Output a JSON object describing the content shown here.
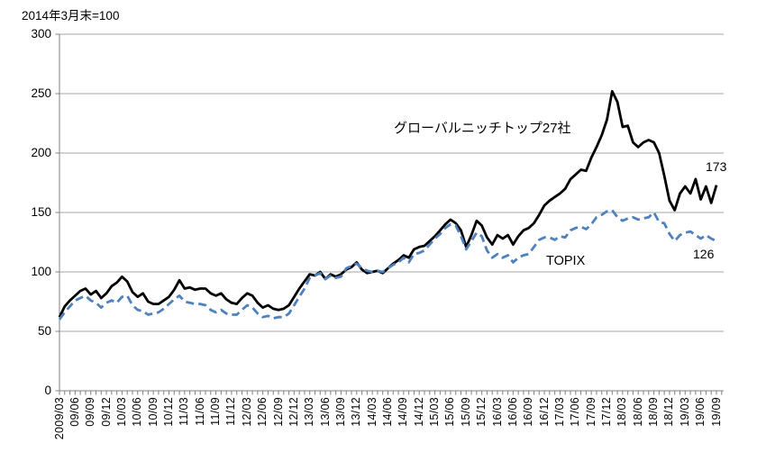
{
  "chart_data": {
    "type": "line",
    "title": "2014年3月末=100",
    "x_start": "2009/03",
    "x_end": "19/09",
    "x_frequency": "monthly",
    "x_tick_labels": [
      "2009/03",
      "09/06",
      "09/09",
      "09/12",
      "10/03",
      "10/06",
      "10/09",
      "10/12",
      "11/03",
      "11/06",
      "11/09",
      "11/12",
      "12/03",
      "12/06",
      "12/09",
      "12/12",
      "13/03",
      "13/06",
      "13/09",
      "13/12",
      "14/03",
      "14/06",
      "14/09",
      "14/12",
      "15/03",
      "15/06",
      "15/09",
      "15/12",
      "16/03",
      "16/06",
      "16/09",
      "16/12",
      "17/03",
      "17/06",
      "17/09",
      "17/12",
      "18/03",
      "18/06",
      "18/09",
      "18/12",
      "19/03",
      "19/06",
      "19/09"
    ],
    "y_ticks": [
      0,
      50,
      100,
      150,
      200,
      250,
      300
    ],
    "ylim": [
      0,
      300
    ],
    "grid": "horizontal gridlines every 50, no vertical gridlines",
    "legend_position": "inline annotations next to lines",
    "colors": {
      "grid": "#a6a6a6",
      "axis": "#808080",
      "tick": "#808080"
    },
    "series": [
      {
        "name": "グローバルニッチトップ27社",
        "color": "#000000",
        "style": "solid",
        "end_label": "173",
        "values": [
          62,
          71,
          76,
          80,
          84,
          86,
          81,
          84,
          78,
          82,
          88,
          91,
          96,
          92,
          83,
          79,
          82,
          75,
          73,
          73,
          76,
          79,
          85,
          93,
          86,
          87,
          85,
          86,
          86,
          82,
          80,
          82,
          77,
          74,
          73,
          78,
          82,
          80,
          74,
          70,
          72,
          69,
          68,
          69,
          72,
          79,
          86,
          92,
          98,
          97,
          100,
          94,
          98,
          96,
          98,
          102,
          104,
          108,
          102,
          99,
          100,
          101,
          99,
          103,
          107,
          110,
          114,
          112,
          119,
          121,
          122,
          126,
          130,
          135,
          140,
          144,
          141,
          135,
          121,
          131,
          143,
          139,
          129,
          123,
          131,
          128,
          131,
          123,
          130,
          135,
          137,
          141,
          148,
          156,
          160,
          163,
          166,
          170,
          178,
          182,
          186,
          185,
          196,
          205,
          215,
          228,
          252,
          243,
          222,
          223,
          209,
          205,
          209,
          211,
          209,
          200,
          181,
          160,
          152,
          166,
          172,
          166,
          178,
          161,
          172,
          158,
          173
        ]
      },
      {
        "name": "TOPIX",
        "color": "#4f81bd",
        "style": "dashed",
        "end_label": "126",
        "values": [
          60,
          66,
          71,
          76,
          78,
          80,
          76,
          74,
          70,
          74,
          76,
          74,
          79,
          80,
          72,
          68,
          67,
          64,
          65,
          66,
          69,
          73,
          77,
          80,
          75,
          74,
          73,
          73,
          72,
          68,
          66,
          68,
          65,
          64,
          64,
          68,
          72,
          70,
          65,
          62,
          63,
          61,
          62,
          62,
          65,
          72,
          79,
          86,
          95,
          97,
          99,
          94,
          97,
          95,
          96,
          103,
          105,
          107,
          103,
          101,
          100,
          101,
          100,
          103,
          106,
          108,
          112,
          108,
          115,
          116,
          118,
          123,
          128,
          132,
          137,
          140,
          139,
          130,
          119,
          126,
          133,
          130,
          118,
          112,
          115,
          112,
          114,
          108,
          112,
          114,
          115,
          121,
          127,
          129,
          129,
          127,
          130,
          129,
          135,
          137,
          138,
          136,
          140,
          146,
          148,
          151,
          152,
          146,
          143,
          145,
          146,
          144,
          145,
          146,
          150,
          142,
          141,
          132,
          126,
          131,
          133,
          134,
          131,
          128,
          131,
          128,
          126
        ]
      }
    ]
  }
}
